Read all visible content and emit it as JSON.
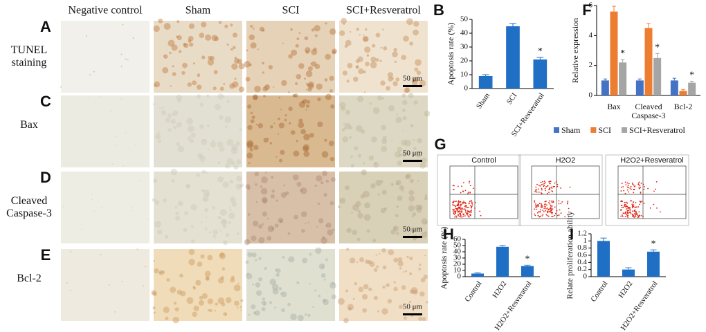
{
  "figure": {
    "columns": [
      "Negative control",
      "Sham",
      "SCI",
      "SCI+Resveratrol"
    ],
    "rows": [
      {
        "letter": "A",
        "label": "TUNEL staining"
      },
      {
        "letter": "C",
        "label": "Bax"
      },
      {
        "letter": "D",
        "label": "Cleaved Caspase-3"
      },
      {
        "letter": "E",
        "label": "Bcl-2"
      }
    ],
    "scale_bar": "50 μm",
    "flow": {
      "letter": "G",
      "plots": [
        "Control",
        "H2O2",
        "H2O2+Resveratrol"
      ]
    }
  },
  "chart_data": [
    {
      "type": "bar",
      "letter": "B",
      "y_label": "Apoptosis rate (%)",
      "categories": [
        "Sham",
        "SCI",
        "SCI+Resveratrol"
      ],
      "color": "#1f6fc5",
      "values": [
        9,
        45,
        21
      ],
      "errors": [
        1,
        2,
        1.5
      ],
      "significance": [
        null,
        null,
        "*"
      ],
      "ylim": [
        0,
        50
      ],
      "yticks": [
        0,
        10,
        20,
        30,
        40,
        50
      ]
    },
    {
      "type": "bar",
      "letter": "F",
      "y_label": "Relative expression",
      "categories": [
        "Bax",
        "Cleaved Caspase-3",
        "Bcl-2"
      ],
      "series": [
        {
          "name": "Sham",
          "color": "#4472c4",
          "values": [
            1.0,
            1.0,
            1.0
          ],
          "errors": [
            0.1,
            0.1,
            0.15
          ],
          "significance": [
            null,
            null,
            null
          ]
        },
        {
          "name": "SCI",
          "color": "#ed7d31",
          "values": [
            5.6,
            4.5,
            0.3
          ],
          "errors": [
            0.35,
            0.3,
            0.1
          ],
          "significance": [
            null,
            null,
            null
          ]
        },
        {
          "name": "SCI+Resveratrol",
          "color": "#a5a5a5",
          "values": [
            2.2,
            2.5,
            0.85
          ],
          "errors": [
            0.2,
            0.3,
            0.1
          ],
          "significance": [
            "*",
            "*",
            "*"
          ]
        }
      ],
      "ylim": [
        0,
        6
      ],
      "yticks": [
        0,
        2,
        4,
        6
      ]
    },
    {
      "type": "bar",
      "letter": "H",
      "y_label": "Apoptosis rate (%)",
      "categories": [
        "Control",
        "H2O2",
        "H2O2+Resveratrol"
      ],
      "color": "#1f6fc5",
      "values": [
        5,
        48,
        17
      ],
      "errors": [
        1,
        2,
        1.5
      ],
      "significance": [
        null,
        null,
        "*"
      ],
      "ylim": [
        0,
        60
      ],
      "yticks": [
        0,
        10,
        20,
        30,
        40,
        50,
        60
      ]
    },
    {
      "type": "bar",
      "letter": "I",
      "y_label": "Relate proliferation ability",
      "categories": [
        "Control",
        "H2O2",
        "H2O2+Resveratrol"
      ],
      "color": "#1f6fc5",
      "values": [
        1.0,
        0.2,
        0.7
      ],
      "errors": [
        0.08,
        0.05,
        0.05
      ],
      "significance": [
        null,
        null,
        "*"
      ],
      "ylim": [
        0,
        1.2
      ],
      "yticks": [
        0,
        0.2,
        0.4,
        0.6,
        0.8,
        1,
        1.2
      ]
    }
  ]
}
